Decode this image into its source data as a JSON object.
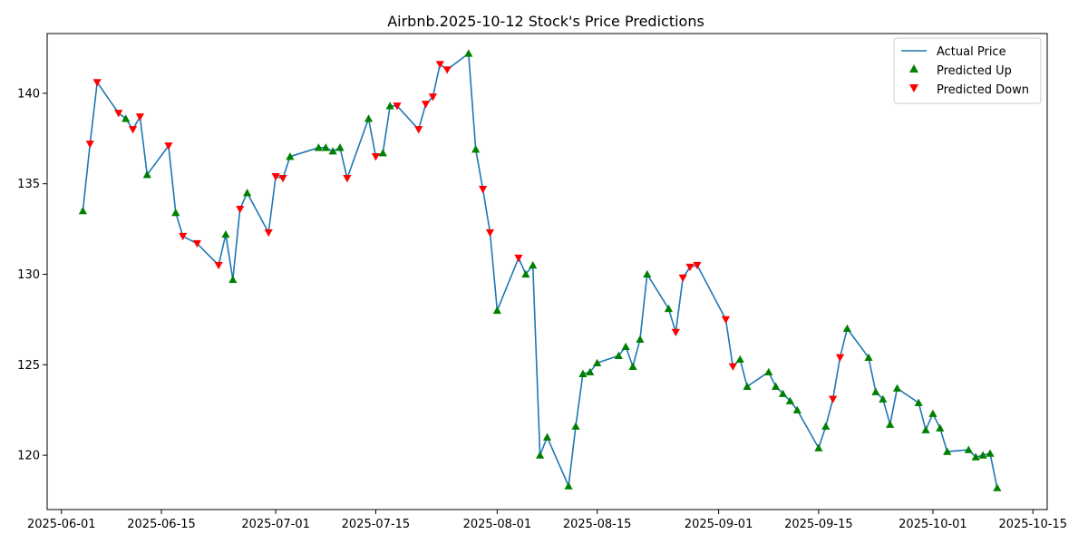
{
  "chart_data": {
    "type": "line",
    "title": "Airbnb.2025-10-12 Stock's Price Predictions",
    "xlabel": "",
    "ylabel": "",
    "x_ticks": [
      "2025-06-01",
      "2025-06-15",
      "2025-07-01",
      "2025-07-15",
      "2025-08-01",
      "2025-08-15",
      "2025-09-01",
      "2025-09-15",
      "2025-10-01",
      "2025-10-15"
    ],
    "y_ticks": [
      120,
      125,
      130,
      135,
      140
    ],
    "xlim": [
      "2025-05-30",
      "2025-10-17"
    ],
    "ylim": [
      117,
      143.3
    ],
    "grid": false,
    "legend_position": "top-right",
    "legend": [
      "Actual Price",
      "Predicted Up",
      "Predicted Down"
    ],
    "colors": {
      "line": "#1f77b4",
      "up": "#008000",
      "down": "#ff0000"
    },
    "points": [
      {
        "date": "2025-06-04",
        "price": 133.5,
        "signal": "up"
      },
      {
        "date": "2025-06-05",
        "price": 137.2,
        "signal": "down"
      },
      {
        "date": "2025-06-06",
        "price": 140.6,
        "signal": "down"
      },
      {
        "date": "2025-06-09",
        "price": 138.9,
        "signal": "down"
      },
      {
        "date": "2025-06-10",
        "price": 138.6,
        "signal": "up"
      },
      {
        "date": "2025-06-11",
        "price": 138.0,
        "signal": "down"
      },
      {
        "date": "2025-06-12",
        "price": 138.7,
        "signal": "down"
      },
      {
        "date": "2025-06-13",
        "price": 135.5,
        "signal": "up"
      },
      {
        "date": "2025-06-16",
        "price": 137.1,
        "signal": "down"
      },
      {
        "date": "2025-06-17",
        "price": 133.4,
        "signal": "up"
      },
      {
        "date": "2025-06-18",
        "price": 132.1,
        "signal": "down"
      },
      {
        "date": "2025-06-20",
        "price": 131.7,
        "signal": "down"
      },
      {
        "date": "2025-06-23",
        "price": 130.5,
        "signal": "down"
      },
      {
        "date": "2025-06-24",
        "price": 132.2,
        "signal": "up"
      },
      {
        "date": "2025-06-25",
        "price": 129.7,
        "signal": "up"
      },
      {
        "date": "2025-06-26",
        "price": 133.6,
        "signal": "down"
      },
      {
        "date": "2025-06-27",
        "price": 134.5,
        "signal": "up"
      },
      {
        "date": "2025-06-30",
        "price": 132.3,
        "signal": "down"
      },
      {
        "date": "2025-07-01",
        "price": 135.4,
        "signal": "down"
      },
      {
        "date": "2025-07-02",
        "price": 135.3,
        "signal": "down"
      },
      {
        "date": "2025-07-03",
        "price": 136.5,
        "signal": "up"
      },
      {
        "date": "2025-07-07",
        "price": 137.0,
        "signal": "up"
      },
      {
        "date": "2025-07-08",
        "price": 137.0,
        "signal": "up"
      },
      {
        "date": "2025-07-09",
        "price": 136.8,
        "signal": "up"
      },
      {
        "date": "2025-07-10",
        "price": 137.0,
        "signal": "up"
      },
      {
        "date": "2025-07-11",
        "price": 135.3,
        "signal": "down"
      },
      {
        "date": "2025-07-14",
        "price": 138.6,
        "signal": "up"
      },
      {
        "date": "2025-07-15",
        "price": 136.5,
        "signal": "down"
      },
      {
        "date": "2025-07-16",
        "price": 136.7,
        "signal": "up"
      },
      {
        "date": "2025-07-17",
        "price": 139.3,
        "signal": "up"
      },
      {
        "date": "2025-07-18",
        "price": 139.3,
        "signal": "down"
      },
      {
        "date": "2025-07-21",
        "price": 138.0,
        "signal": "down"
      },
      {
        "date": "2025-07-22",
        "price": 139.4,
        "signal": "down"
      },
      {
        "date": "2025-07-23",
        "price": 139.8,
        "signal": "down"
      },
      {
        "date": "2025-07-24",
        "price": 141.6,
        "signal": "down"
      },
      {
        "date": "2025-07-25",
        "price": 141.3,
        "signal": "down"
      },
      {
        "date": "2025-07-28",
        "price": 142.2,
        "signal": "up"
      },
      {
        "date": "2025-07-29",
        "price": 136.9,
        "signal": "up"
      },
      {
        "date": "2025-07-30",
        "price": 134.7,
        "signal": "down"
      },
      {
        "date": "2025-07-31",
        "price": 132.3,
        "signal": "down"
      },
      {
        "date": "2025-08-01",
        "price": 128.0,
        "signal": "up"
      },
      {
        "date": "2025-08-04",
        "price": 130.9,
        "signal": "down"
      },
      {
        "date": "2025-08-05",
        "price": 130.0,
        "signal": "up"
      },
      {
        "date": "2025-08-06",
        "price": 130.5,
        "signal": "up"
      },
      {
        "date": "2025-08-07",
        "price": 120.0,
        "signal": "up"
      },
      {
        "date": "2025-08-08",
        "price": 121.0,
        "signal": "up"
      },
      {
        "date": "2025-08-11",
        "price": 118.3,
        "signal": "up"
      },
      {
        "date": "2025-08-12",
        "price": 121.6,
        "signal": "up"
      },
      {
        "date": "2025-08-13",
        "price": 124.5,
        "signal": "up"
      },
      {
        "date": "2025-08-14",
        "price": 124.6,
        "signal": "up"
      },
      {
        "date": "2025-08-15",
        "price": 125.1,
        "signal": "up"
      },
      {
        "date": "2025-08-18",
        "price": 125.5,
        "signal": "up"
      },
      {
        "date": "2025-08-19",
        "price": 126.0,
        "signal": "up"
      },
      {
        "date": "2025-08-20",
        "price": 124.9,
        "signal": "up"
      },
      {
        "date": "2025-08-21",
        "price": 126.4,
        "signal": "up"
      },
      {
        "date": "2025-08-22",
        "price": 130.0,
        "signal": "up"
      },
      {
        "date": "2025-08-25",
        "price": 128.1,
        "signal": "up"
      },
      {
        "date": "2025-08-26",
        "price": 126.8,
        "signal": "down"
      },
      {
        "date": "2025-08-27",
        "price": 129.8,
        "signal": "down"
      },
      {
        "date": "2025-08-28",
        "price": 130.4,
        "signal": "down"
      },
      {
        "date": "2025-08-29",
        "price": 130.5,
        "signal": "down"
      },
      {
        "date": "2025-09-02",
        "price": 127.5,
        "signal": "down"
      },
      {
        "date": "2025-09-03",
        "price": 124.9,
        "signal": "down"
      },
      {
        "date": "2025-09-04",
        "price": 125.3,
        "signal": "up"
      },
      {
        "date": "2025-09-05",
        "price": 123.8,
        "signal": "up"
      },
      {
        "date": "2025-09-08",
        "price": 124.6,
        "signal": "up"
      },
      {
        "date": "2025-09-09",
        "price": 123.8,
        "signal": "up"
      },
      {
        "date": "2025-09-10",
        "price": 123.4,
        "signal": "up"
      },
      {
        "date": "2025-09-11",
        "price": 123.0,
        "signal": "up"
      },
      {
        "date": "2025-09-12",
        "price": 122.5,
        "signal": "up"
      },
      {
        "date": "2025-09-15",
        "price": 120.4,
        "signal": "up"
      },
      {
        "date": "2025-09-16",
        "price": 121.6,
        "signal": "up"
      },
      {
        "date": "2025-09-17",
        "price": 123.1,
        "signal": "down"
      },
      {
        "date": "2025-09-18",
        "price": 125.4,
        "signal": "down"
      },
      {
        "date": "2025-09-19",
        "price": 127.0,
        "signal": "up"
      },
      {
        "date": "2025-09-22",
        "price": 125.4,
        "signal": "up"
      },
      {
        "date": "2025-09-23",
        "price": 123.5,
        "signal": "up"
      },
      {
        "date": "2025-09-24",
        "price": 123.1,
        "signal": "up"
      },
      {
        "date": "2025-09-25",
        "price": 121.7,
        "signal": "up"
      },
      {
        "date": "2025-09-26",
        "price": 123.7,
        "signal": "up"
      },
      {
        "date": "2025-09-29",
        "price": 122.9,
        "signal": "up"
      },
      {
        "date": "2025-09-30",
        "price": 121.4,
        "signal": "up"
      },
      {
        "date": "2025-10-01",
        "price": 122.3,
        "signal": "up"
      },
      {
        "date": "2025-10-02",
        "price": 121.5,
        "signal": "up"
      },
      {
        "date": "2025-10-03",
        "price": 120.2,
        "signal": "up"
      },
      {
        "date": "2025-10-06",
        "price": 120.3,
        "signal": "up"
      },
      {
        "date": "2025-10-07",
        "price": 119.9,
        "signal": "up"
      },
      {
        "date": "2025-10-08",
        "price": 120.0,
        "signal": "up"
      },
      {
        "date": "2025-10-09",
        "price": 120.1,
        "signal": "up"
      },
      {
        "date": "2025-10-10",
        "price": 118.2,
        "signal": "up"
      }
    ]
  }
}
